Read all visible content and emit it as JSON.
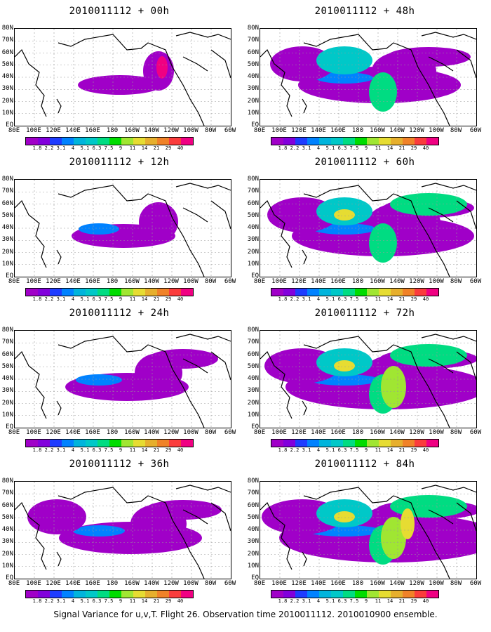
{
  "panels": [
    {
      "title": "2010011112 + 00h",
      "level": 0
    },
    {
      "title": "2010011112 + 48h",
      "level": 4
    },
    {
      "title": "2010011112 + 12h",
      "level": 1
    },
    {
      "title": "2010011112 + 60h",
      "level": 5
    },
    {
      "title": "2010011112 + 24h",
      "level": 2
    },
    {
      "title": "2010011112 + 72h",
      "level": 6
    },
    {
      "title": "2010011112 + 36h",
      "level": 3
    },
    {
      "title": "2010011112 + 84h",
      "level": 7
    }
  ],
  "lat_labels": [
    "80N",
    "70N",
    "60N",
    "50N",
    "40N",
    "30N",
    "20N",
    "10N",
    "EQ"
  ],
  "lon_labels": [
    "80E",
    "100E",
    "120E",
    "140E",
    "160E",
    "180",
    "160W",
    "140W",
    "120W",
    "100W",
    "80W",
    "60W"
  ],
  "colorbar": {
    "colors": [
      "#a000c8",
      "#8200dc",
      "#1e3cff",
      "#0082ff",
      "#00b4dc",
      "#00c8c8",
      "#00dc82",
      "#00dc00",
      "#a0e632",
      "#e6dc32",
      "#e6af2d",
      "#f08228",
      "#fa3c3c",
      "#f00082"
    ],
    "labels": [
      "1.8",
      "2.2",
      "3.1",
      "4",
      "5.1",
      "6.3",
      "7.5",
      "9",
      "11",
      "14",
      "21",
      "29",
      "40"
    ]
  },
  "caption": "Signal Variance for u,v,T. Flight 26. Observation time 2010011112. 2010010900 ensemble."
}
